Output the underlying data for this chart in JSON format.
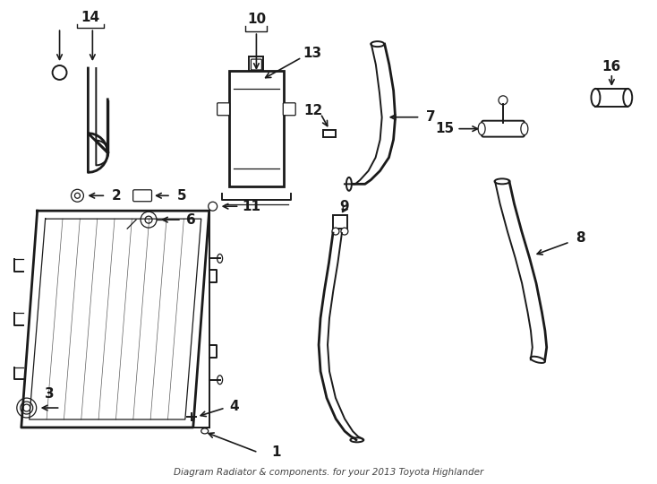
{
  "title": "Diagram Radiator & components. for your 2013 Toyota Highlander",
  "bg_color": "#ffffff",
  "line_color": "#1a1a1a",
  "fig_width": 7.34,
  "fig_height": 5.4,
  "dpi": 100,
  "label_fontsize": 11
}
